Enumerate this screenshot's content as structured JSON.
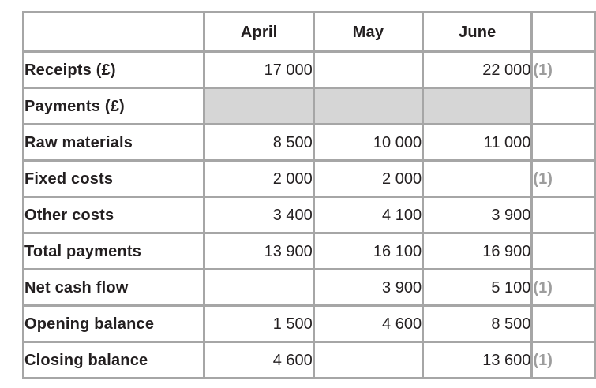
{
  "table": {
    "columns": [
      "April",
      "May",
      "June"
    ],
    "rows": [
      {
        "label": "Receipts (£)",
        "values": [
          "17 000",
          "",
          "22 000"
        ],
        "mark": "(1)",
        "shaded": false
      },
      {
        "label": "Payments (£)",
        "values": [
          "",
          "",
          ""
        ],
        "mark": "",
        "shaded": true
      },
      {
        "label": "Raw materials",
        "values": [
          "8 500",
          "10 000",
          "11 000"
        ],
        "mark": "",
        "shaded": false
      },
      {
        "label": "Fixed costs",
        "values": [
          "2 000",
          "2 000",
          ""
        ],
        "mark": "(1)",
        "shaded": false
      },
      {
        "label": "Other costs",
        "values": [
          "3 400",
          "4 100",
          "3 900"
        ],
        "mark": "",
        "shaded": false
      },
      {
        "label": "Total payments",
        "values": [
          "13 900",
          "16 100",
          "16 900"
        ],
        "mark": "",
        "shaded": false
      },
      {
        "label": "Net cash flow",
        "values": [
          "",
          "3 900",
          "5 100"
        ],
        "mark": "(1)",
        "shaded": false
      },
      {
        "label": "Opening balance",
        "values": [
          "1 500",
          "4 600",
          "8 500"
        ],
        "mark": "",
        "shaded": false
      },
      {
        "label": "Closing balance",
        "values": [
          "4 600",
          "",
          "13 600"
        ],
        "mark": "(1)",
        "shaded": false
      }
    ],
    "colors": {
      "border": "#a6a6a6",
      "shaded_cell": "#d6d6d6",
      "mark_text": "#9d9d9d",
      "text": "#231f20",
      "background": "#ffffff"
    }
  }
}
